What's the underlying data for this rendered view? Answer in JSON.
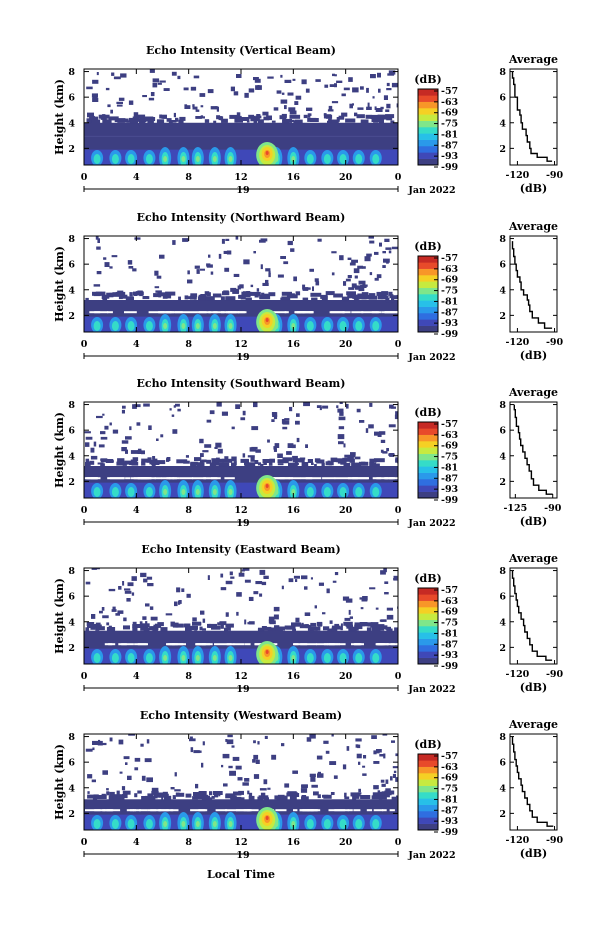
{
  "colors": {
    "colorbar": [
      "#3d3f82",
      "#3f48b8",
      "#2f6ee0",
      "#2a99ea",
      "#27c0e8",
      "#35dcc8",
      "#7fe68a",
      "#c7ea3f",
      "#f5d024",
      "#f89628",
      "#e84a2a",
      "#c62a24"
    ],
    "background_fill": "#3d3f82"
  },
  "x_label": "Local Time",
  "date_label": "Jan 2022",
  "day_label": "19",
  "colorbar_unit": "(dB)",
  "colorbar_ticks": [
    "-57",
    "-63",
    "-69",
    "-75",
    "-81",
    "-87",
    "-93",
    "-99"
  ],
  "chart_data": [
    {
      "type": "heatmap",
      "title": "Echo Intensity (Vertical Beam)",
      "ylabel": "Height (km)",
      "x_ticks": [
        "0",
        "4",
        "8",
        "12",
        "16",
        "20",
        "0"
      ],
      "y_ticks": [
        "2",
        "4",
        "6",
        "8"
      ],
      "xlim": [
        0,
        24
      ],
      "ylim": [
        0.7,
        8.2
      ],
      "noise_top_km": 4.0,
      "clim": [
        -99,
        -57
      ],
      "average_profile": {
        "title": "Average",
        "xlabel": "(dB)",
        "x_ticks": [
          "-120",
          "-90"
        ],
        "y_ticks": [
          "2",
          "4",
          "6",
          "8"
        ],
        "xlim": [
          -126,
          -88
        ],
        "ylim": [
          0.7,
          8.2
        ],
        "points": [
          [
            -92,
            1.0
          ],
          [
            -96,
            1.3
          ],
          [
            -104,
            1.6
          ],
          [
            -109,
            2.0
          ],
          [
            -110,
            2.5
          ],
          [
            -112,
            3.0
          ],
          [
            -113,
            3.5
          ],
          [
            -116,
            4.0
          ],
          [
            -117,
            4.6
          ],
          [
            -118,
            5.0
          ],
          [
            -120,
            5.5
          ],
          [
            -120,
            6.0
          ],
          [
            -122,
            6.5
          ],
          [
            -122,
            7.0
          ],
          [
            -123,
            7.5
          ],
          [
            -124,
            8.0
          ]
        ]
      }
    },
    {
      "type": "heatmap",
      "title": "Echo Intensity (Northward Beam)",
      "ylabel": "Height (km)",
      "x_ticks": [
        "0",
        "4",
        "8",
        "12",
        "16",
        "20",
        "0"
      ],
      "y_ticks": [
        "2",
        "4",
        "6",
        "8"
      ],
      "xlim": [
        0,
        24
      ],
      "ylim": [
        0.7,
        8.2
      ],
      "noise_top_km": 3.2,
      "clim": [
        -99,
        -57
      ],
      "average_profile": {
        "title": "Average",
        "xlabel": "(dB)",
        "x_ticks": [
          "-120",
          "-90"
        ],
        "y_ticks": [
          "2",
          "4",
          "6",
          "8"
        ],
        "xlim": [
          -126,
          -88
        ],
        "ylim": [
          0.7,
          8.2
        ],
        "points": [
          [
            -92,
            1.0
          ],
          [
            -98,
            1.4
          ],
          [
            -103,
            1.8
          ],
          [
            -108,
            2.3
          ],
          [
            -110,
            2.8
          ],
          [
            -111,
            3.2
          ],
          [
            -112,
            3.6
          ],
          [
            -115,
            4.0
          ],
          [
            -117,
            4.6
          ],
          [
            -118,
            5.0
          ],
          [
            -120,
            5.5
          ],
          [
            -121,
            6.0
          ],
          [
            -122,
            6.6
          ],
          [
            -123,
            7.2
          ],
          [
            -124,
            7.8
          ]
        ]
      }
    },
    {
      "type": "heatmap",
      "title": "Echo Intensity (Southward Beam)",
      "ylabel": "Height (km)",
      "x_ticks": [
        "0",
        "4",
        "8",
        "12",
        "16",
        "20",
        "0"
      ],
      "y_ticks": [
        "2",
        "4",
        "6",
        "8"
      ],
      "xlim": [
        0,
        24
      ],
      "ylim": [
        0.7,
        8.2
      ],
      "noise_top_km": 3.2,
      "clim": [
        -99,
        -57
      ],
      "average_profile": {
        "title": "Average",
        "xlabel": "(dB)",
        "x_ticks": [
          "-125",
          "-90"
        ],
        "y_ticks": [
          "2",
          "4",
          "6",
          "8"
        ],
        "xlim": [
          -130,
          -86
        ],
        "ylim": [
          0.7,
          8.2
        ],
        "points": [
          [
            -90,
            1.0
          ],
          [
            -96,
            1.3
          ],
          [
            -103,
            1.7
          ],
          [
            -108,
            2.2
          ],
          [
            -110,
            2.8
          ],
          [
            -112,
            3.3
          ],
          [
            -114,
            3.8
          ],
          [
            -116,
            4.3
          ],
          [
            -118,
            4.8
          ],
          [
            -120,
            5.3
          ],
          [
            -121,
            5.8
          ],
          [
            -122,
            6.3
          ],
          [
            -124,
            7.0
          ],
          [
            -125,
            7.6
          ],
          [
            -126,
            8.0
          ]
        ]
      }
    },
    {
      "type": "heatmap",
      "title": "Echo Intensity (Eastward Beam)",
      "ylabel": "Height (km)",
      "x_ticks": [
        "0",
        "4",
        "8",
        "12",
        "16",
        "20",
        "0"
      ],
      "y_ticks": [
        "2",
        "4",
        "6",
        "8"
      ],
      "xlim": [
        0,
        24
      ],
      "ylim": [
        0.7,
        8.2
      ],
      "noise_top_km": 3.3,
      "clim": [
        -99,
        -57
      ],
      "average_profile": {
        "title": "Average",
        "xlabel": "(dB)",
        "x_ticks": [
          "-120",
          "-90"
        ],
        "y_ticks": [
          "2",
          "4",
          "6",
          "8"
        ],
        "xlim": [
          -126,
          -88
        ],
        "ylim": [
          0.7,
          8.2
        ],
        "points": [
          [
            -92,
            1.0
          ],
          [
            -97,
            1.3
          ],
          [
            -104,
            1.7
          ],
          [
            -108,
            2.2
          ],
          [
            -110,
            2.7
          ],
          [
            -112,
            3.2
          ],
          [
            -114,
            3.7
          ],
          [
            -115,
            4.2
          ],
          [
            -117,
            4.7
          ],
          [
            -119,
            5.2
          ],
          [
            -120,
            5.7
          ],
          [
            -121,
            6.2
          ],
          [
            -122,
            6.8
          ],
          [
            -123,
            7.4
          ],
          [
            -124,
            8.0
          ]
        ]
      }
    },
    {
      "type": "heatmap",
      "title": "Echo Intensity (Westward Beam)",
      "ylabel": "Height (km)",
      "x_ticks": [
        "0",
        "4",
        "8",
        "12",
        "16",
        "20",
        "0"
      ],
      "y_ticks": [
        "2",
        "4",
        "6",
        "8"
      ],
      "xlim": [
        0,
        24
      ],
      "ylim": [
        0.7,
        8.2
      ],
      "noise_top_km": 3.1,
      "clim": [
        -99,
        -57
      ],
      "average_profile": {
        "title": "Average",
        "xlabel": "(dB)",
        "x_ticks": [
          "-120",
          "-90"
        ],
        "y_ticks": [
          "2",
          "4",
          "6",
          "8"
        ],
        "xlim": [
          -126,
          -88
        ],
        "ylim": [
          0.7,
          8.2
        ],
        "points": [
          [
            -91,
            1.0
          ],
          [
            -96,
            1.3
          ],
          [
            -104,
            1.7
          ],
          [
            -108,
            2.2
          ],
          [
            -110,
            2.7
          ],
          [
            -112,
            3.2
          ],
          [
            -114,
            3.7
          ],
          [
            -116,
            4.2
          ],
          [
            -117,
            4.7
          ],
          [
            -119,
            5.2
          ],
          [
            -120,
            5.7
          ],
          [
            -121,
            6.2
          ],
          [
            -122,
            6.8
          ],
          [
            -123,
            7.4
          ],
          [
            -124,
            8.0
          ]
        ]
      }
    }
  ]
}
